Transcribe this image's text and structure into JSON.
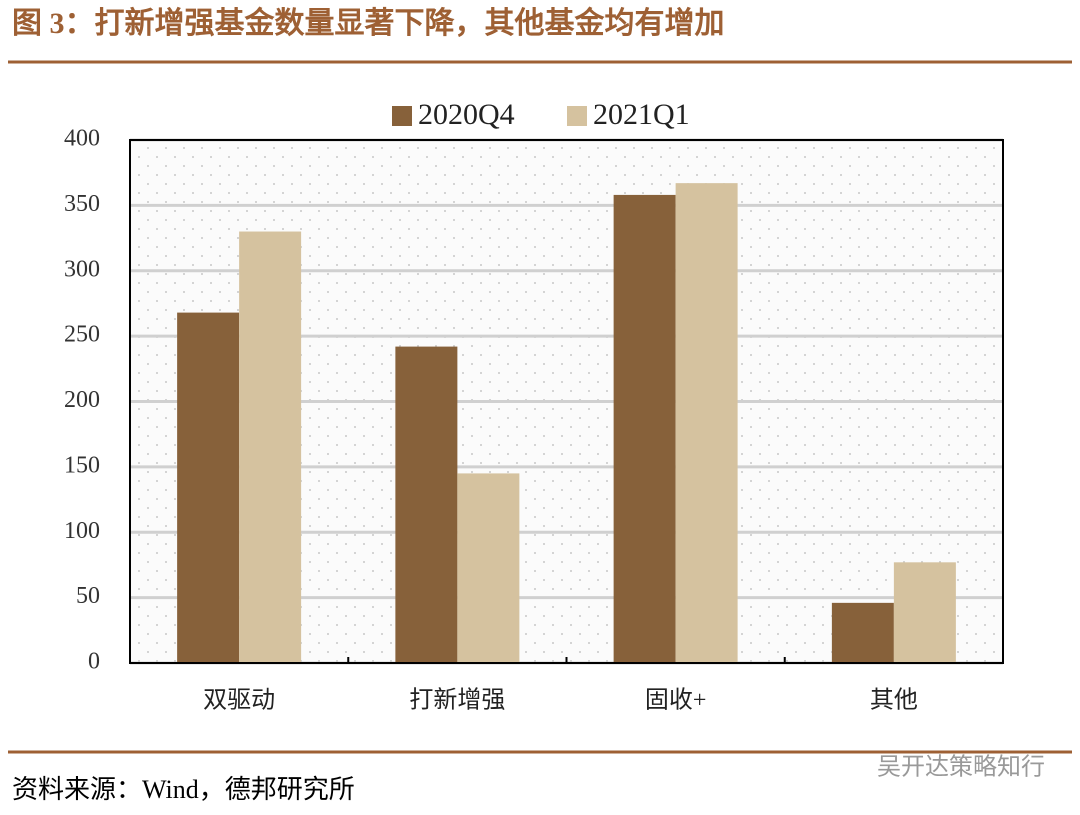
{
  "title": "图 3：打新增强基金数量显著下降，其他基金均有增加",
  "source": "资料来源：Wind，德邦研究所",
  "watermark": "吴开达策略知行",
  "chart_data": {
    "type": "bar",
    "categories": [
      "双驱动",
      "打新增强",
      "固收+",
      "其他"
    ],
    "series": [
      {
        "name": "2020Q4",
        "color": "#87613a",
        "values": [
          268,
          242,
          358,
          46
        ]
      },
      {
        "name": "2021Q1",
        "color": "#d5c29f",
        "values": [
          330,
          145,
          367,
          77
        ]
      }
    ],
    "ylim": [
      0,
      400
    ],
    "yticks": [
      0,
      50,
      100,
      150,
      200,
      250,
      300,
      350,
      400
    ],
    "grid": true,
    "legend": "top"
  }
}
